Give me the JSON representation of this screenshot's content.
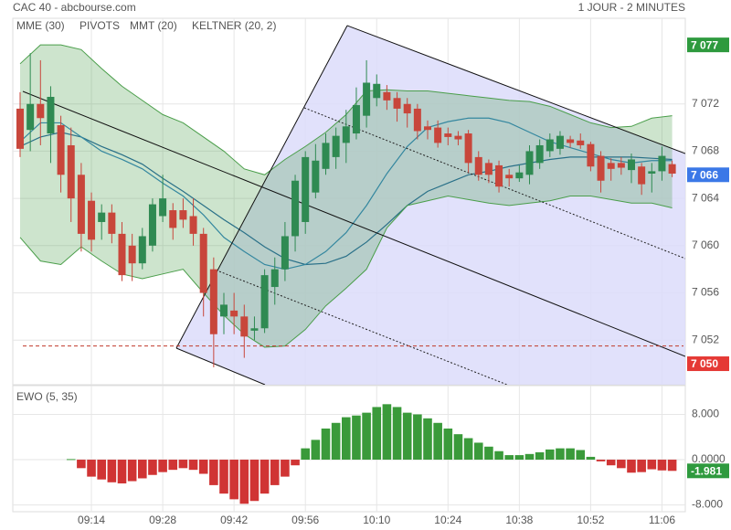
{
  "header": {
    "title": "CAC 40 - abcbourse.com",
    "period": "1 JOUR - 2 MINUTES"
  },
  "chart_data": [
    {
      "type": "candlestick",
      "up_color": "#2f8a52",
      "down_color": "#c8463b",
      "open": [
        7071.6,
        7069.8,
        7072,
        7069.5,
        7070.2,
        7068.5,
        7066,
        7063.8,
        7062,
        7062.8,
        7061,
        7060,
        7058.5,
        7060,
        7062.5,
        7063,
        7063,
        7062.5,
        7061,
        7058,
        7054,
        7054.5,
        7054,
        7052.8,
        7053,
        7056.5,
        7058,
        7060.8,
        7062,
        7064.5,
        7066.5,
        7067.5,
        7068.7,
        7069.5,
        7071,
        7072.5,
        7073,
        7072.5,
        7072,
        7071.6,
        7070.1,
        7070,
        7069.5,
        7069.3,
        7069.5,
        7067.5,
        7067,
        7066.8,
        7066,
        7065.7,
        7066,
        7067,
        7068,
        7068.2,
        7069,
        7068.9,
        7068.6,
        7067.6,
        7067,
        7067,
        7066.4,
        7066.7,
        7066.1,
        7066.3,
        7066.9
      ],
      "high": [
        7073,
        7076.3,
        7075.7,
        7073.5,
        7071,
        7070,
        7067,
        7064.5,
        7063.5,
        7063.5,
        7062,
        7061,
        7061.5,
        7064,
        7066,
        7063.6,
        7064,
        7064,
        7061.5,
        7059,
        7056,
        7056,
        7055,
        7054,
        7058,
        7059,
        7062,
        7066,
        7068,
        7068.6,
        7069.5,
        7070,
        7071.5,
        7073.4,
        7075.7,
        7074.5,
        7073.6,
        7073,
        7072.5,
        7072,
        7070.6,
        7070.6,
        7070,
        7069.7,
        7069.8,
        7068,
        7067.3,
        7067.2,
        7066.5,
        7066.8,
        7068.5,
        7069,
        7069.5,
        7069.7,
        7069.3,
        7069.5,
        7068.8,
        7068,
        7067.4,
        7067.5,
        7067.8,
        7067,
        7067,
        7068.4,
        7067.2
      ],
      "low": [
        7067.5,
        7068,
        7068.5,
        7067,
        7064.5,
        7062,
        7059.5,
        7059.5,
        7060.5,
        7060.2,
        7057,
        7057,
        7058,
        7059.5,
        7062,
        7060.5,
        7061.5,
        7060,
        7054,
        7049.7,
        7052.5,
        7052.5,
        7050.5,
        7052,
        7052.6,
        7055,
        7057,
        7059.5,
        7061,
        7064,
        7066,
        7066.5,
        7067,
        7069,
        7070,
        7071.8,
        7071.5,
        7070.5,
        7070,
        7069,
        7069,
        7068.3,
        7068.5,
        7068.5,
        7066.2,
        7065.5,
        7065.3,
        7064.5,
        7065,
        7065.4,
        7065.2,
        7066.5,
        7067.5,
        7067.7,
        7068.3,
        7068.2,
        7066.3,
        7064.5,
        7065.5,
        7066,
        7065.3,
        7064.3,
        7064.5,
        7065.5,
        7065.8
      ],
      "close": [
        7068.2,
        7072,
        7070.8,
        7072.6,
        7066,
        7064,
        7061,
        7060.5,
        7062.8,
        7061,
        7057.5,
        7058.5,
        7060.8,
        7063.5,
        7064,
        7061.5,
        7062.2,
        7061,
        7056,
        7052.5,
        7055,
        7054,
        7052.3,
        7053,
        7057.5,
        7058,
        7060.8,
        7065.5,
        7067.5,
        7067.2,
        7068.7,
        7069.3,
        7070.1,
        7071.9,
        7073.8,
        7073.7,
        7072.3,
        7071.6,
        7071.2,
        7069.7,
        7069.8,
        7068.7,
        7069.2,
        7069,
        7067,
        7066,
        7066,
        7065,
        7065.7,
        7066.2,
        7068,
        7068.5,
        7069,
        7069.3,
        7068.7,
        7068.5,
        7066.7,
        7065.5,
        7066.5,
        7066.6,
        7067.3,
        7065.2,
        7066.3,
        7067.6,
        7066.1
      ],
      "series": [
        {
          "name": "MME (30)",
          "color": "#1d5fa0",
          "x": [
            0,
            2,
            4,
            6,
            8,
            10,
            12,
            14,
            16,
            18,
            20,
            22,
            24,
            26,
            28,
            30,
            32,
            34,
            36,
            38,
            40,
            42,
            44,
            46,
            48,
            50,
            52,
            54,
            56,
            58,
            60,
            62,
            64
          ],
          "values": [
            7068.4,
            7069.2,
            7069.6,
            7069.2,
            7068.4,
            7067.7,
            7066.9,
            7065.7,
            7064.6,
            7063.4,
            7062.2,
            7061.1,
            7059.9,
            7058.9,
            7058.4,
            7058.5,
            7059.1,
            7060.3,
            7061.8,
            7063.4,
            7064.6,
            7065.3,
            7066.0,
            7066.3,
            7066.7,
            7067.0,
            7067.3,
            7067.5,
            7067.5,
            7067.5,
            7067.5,
            7067.4,
            7067.3
          ]
        },
        {
          "name": "PIVOTS",
          "color": "#c0392b",
          "value": 7051.5
        },
        {
          "name": "MMT (20)",
          "color": "#2c7fc0",
          "x": [
            0,
            2,
            4,
            6,
            8,
            10,
            12,
            14,
            16,
            18,
            20,
            22,
            24,
            26,
            28,
            30,
            32,
            34,
            36,
            38,
            40,
            42,
            44,
            46,
            48,
            50,
            52,
            54,
            56,
            58,
            60,
            62,
            64
          ],
          "values": [
            7068.8,
            7070.4,
            7070.4,
            7069.2,
            7068.0,
            7067.3,
            7066.5,
            7065.3,
            7064.2,
            7062.6,
            7060.7,
            7059.5,
            7058.4,
            7058.0,
            7058.4,
            7059.5,
            7061.1,
            7063.4,
            7066.1,
            7068.4,
            7070.0,
            7070.5,
            7070.8,
            7070.8,
            7070.4,
            7069.6,
            7068.8,
            7068.3,
            7067.8,
            7067.3,
            7067.0,
            7067.2,
            7067.2
          ]
        },
        {
          "name": "KELTNER (20, 2)",
          "color": "#4a9e4a",
          "x": [
            0,
            2,
            4,
            6,
            8,
            10,
            12,
            14,
            16,
            18,
            20,
            22,
            24,
            26,
            28,
            30,
            32,
            34,
            36,
            38,
            40,
            42,
            44,
            46,
            48,
            50,
            52,
            54,
            56,
            58,
            60,
            62,
            64
          ],
          "upper": [
            7075.4,
            7077.0,
            7077.0,
            7076.6,
            7075.0,
            7073.5,
            7072.3,
            7071.1,
            7070.4,
            7069.2,
            7068.0,
            7066.5,
            7066.0,
            7067.3,
            7068.4,
            7069.6,
            7071.1,
            7073.1,
            7073.2,
            7073.1,
            7073.1,
            7072.9,
            7072.7,
            7072.5,
            7072.3,
            7072.2,
            7071.8,
            7071.1,
            7070.4,
            7070.0,
            7070.1,
            7070.8,
            7071.0
          ],
          "lower": [
            7060.7,
            7058.7,
            7058.4,
            7059.9,
            7058.7,
            7057.6,
            7057.2,
            7057.6,
            7058.0,
            7056.0,
            7054.1,
            7052.5,
            7051.4,
            7051.5,
            7052.9,
            7054.9,
            7056.4,
            7058.0,
            7061.5,
            7063.4,
            7063.8,
            7064.2,
            7063.9,
            7063.6,
            7063.4,
            7063.6,
            7063.8,
            7064.2,
            7064.2,
            7063.9,
            7063.6,
            7063.6,
            7063.2
          ]
        }
      ],
      "price_labels": [
        {
          "value": 7077,
          "label": "7 077",
          "color": "#2e9a3e"
        },
        {
          "value": 7066,
          "label": "7 066",
          "color": "#3b78e7"
        },
        {
          "value": 7050,
          "label": "7 050",
          "color": "#e53935"
        }
      ],
      "ylim": [
        7048.3,
        7079.1
      ],
      "yticks": [
        {
          "value": 7052,
          "label": "7 052"
        },
        {
          "value": 7056,
          "label": "7 056"
        },
        {
          "value": 7060,
          "label": "7 060"
        },
        {
          "value": 7064,
          "label": "7 064"
        },
        {
          "value": 7068,
          "label": "7 068"
        },
        {
          "value": 7072,
          "label": "7 072"
        }
      ],
      "grid": true
    },
    {
      "type": "bar",
      "title": "EWO (5, 35)",
      "categories": [
        null,
        null,
        null,
        null,
        null,
        null,
        null,
        "09:14",
        null,
        null,
        null,
        null,
        null,
        null,
        "09:28",
        null,
        null,
        null,
        null,
        null,
        null,
        "09:42",
        null,
        null,
        null,
        null,
        null,
        null,
        "09:56",
        null,
        null,
        null,
        null,
        null,
        null,
        "10:10",
        null,
        null,
        null,
        null,
        null,
        null,
        "10:24",
        null,
        null,
        null,
        null,
        null,
        null,
        "10:38",
        null,
        null,
        null,
        null,
        null,
        null,
        "10:52",
        null,
        null,
        null,
        null,
        null,
        null,
        "11:06",
        null
      ],
      "values": [
        null,
        null,
        null,
        null,
        null,
        0.1,
        -1.5,
        -3,
        -3.5,
        -4,
        -4.2,
        -3.8,
        -3.3,
        -2.7,
        -2.2,
        -1.8,
        -1.5,
        -1.8,
        -2.5,
        -4.5,
        -6,
        -7,
        -7.8,
        -7.3,
        -6,
        -4.5,
        -3,
        -1,
        2,
        3.5,
        5.5,
        6.5,
        7.5,
        7.8,
        8.3,
        9.3,
        9.8,
        9.3,
        8.3,
        8,
        7.3,
        6.5,
        5.5,
        4.5,
        3.8,
        3,
        2.3,
        1.5,
        0.8,
        0.8,
        1,
        1.3,
        1.8,
        2,
        2,
        1.7,
        0.5,
        -0.3,
        -1,
        -1.5,
        -2.3,
        -2.2,
        -1.7,
        -1.9,
        -1.981
      ],
      "positive_color": "#3a9a3a",
      "negative_color": "#d03434",
      "price_labels": [
        {
          "value": -1.981,
          "color": "#2e9a3e"
        }
      ],
      "ylim": [
        -9.2,
        12.6
      ],
      "yticks": [
        {
          "value": -8,
          "label": "-8.000"
        },
        {
          "value": 0,
          "label": "0.0000"
        },
        {
          "value": 8,
          "label": "8.000"
        }
      ],
      "grid": true
    }
  ]
}
